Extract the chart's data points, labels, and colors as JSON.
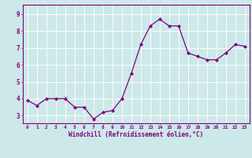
{
  "x": [
    0,
    1,
    2,
    3,
    4,
    5,
    6,
    7,
    8,
    9,
    10,
    11,
    12,
    13,
    14,
    15,
    16,
    17,
    18,
    19,
    20,
    21,
    22,
    23
  ],
  "y": [
    3.9,
    3.6,
    4.0,
    4.0,
    4.0,
    3.5,
    3.5,
    2.8,
    3.2,
    3.3,
    4.0,
    5.5,
    7.2,
    8.3,
    8.7,
    8.3,
    8.3,
    6.7,
    6.5,
    6.3,
    6.3,
    6.7,
    7.2,
    7.1
  ],
  "line_color": "#800080",
  "marker": "D",
  "markersize": 2.0,
  "bg_color": "#cce8e8",
  "grid_color": "#ffffff",
  "axis_color": "#800080",
  "xlabel": "Windchill (Refroidissement éolien,°C)",
  "ylabel_ticks": [
    3,
    4,
    5,
    6,
    7,
    8,
    9
  ],
  "xlim": [
    -0.5,
    23.5
  ],
  "ylim": [
    2.55,
    9.55
  ]
}
